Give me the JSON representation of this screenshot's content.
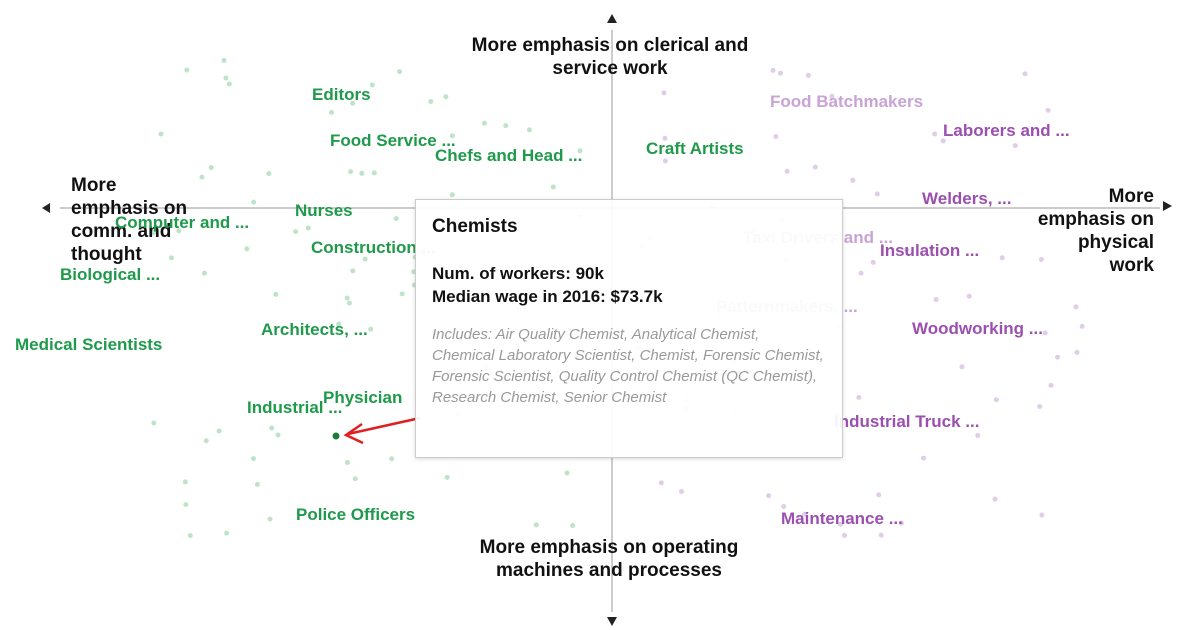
{
  "axis_labels": {
    "top": "More emphasis on clerical and service work",
    "bottom": "More emphasis on operating machines and processes",
    "left": "More emphasis on comm. and thought",
    "right": "More emphasis on physical work"
  },
  "job_labels": [
    {
      "text": "Editors",
      "color": "#1e9a4a"
    },
    {
      "text": "Food Service ...",
      "color": "#1e9a4a"
    },
    {
      "text": "Chefs and Head ...",
      "color": "#1e9a4a"
    },
    {
      "text": "Craft Artists",
      "color": "#1e9a4a"
    },
    {
      "text": "Nurses",
      "color": "#1e9a4a"
    },
    {
      "text": "Computer and ...",
      "color": "#1e9a4a"
    },
    {
      "text": "Construction ...",
      "color": "#1e9a4a"
    },
    {
      "text": "Biological ...",
      "color": "#1e9a4a"
    },
    {
      "text": "Architects, ...",
      "color": "#1e9a4a"
    },
    {
      "text": "Medical Scientists",
      "color": "#1e9a4a"
    },
    {
      "text": "Industrial ...",
      "color": "#1e9a4a"
    },
    {
      "text": "Physician",
      "color": "#1e9a4a"
    },
    {
      "text": "Police Officers",
      "color": "#1e9a4a"
    },
    {
      "text": "Food Batchmakers",
      "color": "#c9a3d6"
    },
    {
      "text": "Laborers and ...",
      "color": "#9b4fb0"
    },
    {
      "text": "Welders, ...",
      "color": "#9b4fb0"
    },
    {
      "text": "Taxi Drivers and ...",
      "color": "#c9a3d6"
    },
    {
      "text": "Insulation ...",
      "color": "#9b4fb0"
    },
    {
      "text": "Patternmakers, ...",
      "color": "#c9a3d6"
    },
    {
      "text": "Woodworking ...",
      "color": "#9b4fb0"
    },
    {
      "text": "Industrial Truck ...",
      "color": "#9b4fb0"
    },
    {
      "text": "Maintenance ...",
      "color": "#9b4fb0"
    }
  ],
  "tooltip": {
    "title": "Chemists",
    "workers": "Num. of workers: 90k",
    "wage": "Median wage in 2016: $73.7k",
    "includes": "Includes: Air Quality Chemist, Analytical Chemist, Chemical Laboratory Scientist, Chemist, Forensic Chemist, Forensic Scientist, Quality Control Chemist (QC Chemist), Research Chemist, Senior Chemist"
  }
}
